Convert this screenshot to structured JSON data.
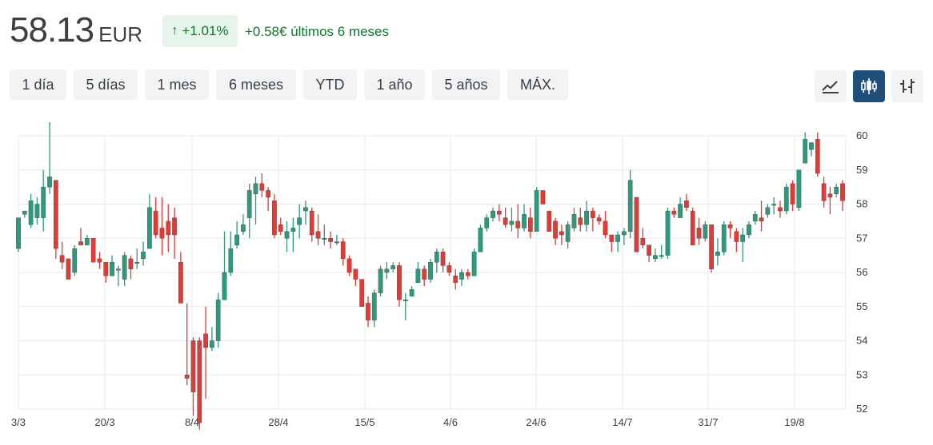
{
  "quote": {
    "price": "58.13",
    "currency": "EUR",
    "change_percent": "+1.01%",
    "change_text": "+0.58€ últimos 6 meses",
    "up_arrow_icon": "arrow-up-icon"
  },
  "ranges": [
    {
      "label": "1 día",
      "active": false
    },
    {
      "label": "5 días",
      "active": false
    },
    {
      "label": "1 mes",
      "active": false
    },
    {
      "label": "6 meses",
      "active": true
    },
    {
      "label": "YTD",
      "active": false
    },
    {
      "label": "1 año",
      "active": false
    },
    {
      "label": "5 años",
      "active": false
    },
    {
      "label": "MÁX.",
      "active": false
    }
  ],
  "chart_tools": [
    {
      "icon": "line-chart-icon",
      "active": false
    },
    {
      "icon": "candlestick-icon",
      "active": true
    },
    {
      "icon": "ohlc-bars-icon",
      "active": false
    }
  ],
  "colors": {
    "up": "#2e9a7d",
    "down": "#e53935",
    "active_tab": "#1f4e79",
    "positive_text": "#137333"
  },
  "chart_data": {
    "type": "candlestick",
    "ylim": [
      52,
      60
    ],
    "y_ticks": [
      "60",
      "59",
      "58",
      "57",
      "56",
      "55",
      "54",
      "53",
      "52"
    ],
    "x_tick_labels": [
      "3/3",
      "20/3",
      "8/4",
      "28/4",
      "15/5",
      "4/6",
      "24/6",
      "14/7",
      "31/7",
      "19/8"
    ],
    "grid": true,
    "candles": [
      [
        56.7,
        57.6,
        57.6,
        56.6
      ],
      [
        57.7,
        57.8,
        57.8,
        57.6
      ],
      [
        57.4,
        58.1,
        58.3,
        57.3
      ],
      [
        57.6,
        58.0,
        58.2,
        57.4
      ],
      [
        57.6,
        58.5,
        59.0,
        57.2
      ],
      [
        58.5,
        58.8,
        60.4,
        58.3
      ],
      [
        58.7,
        56.7,
        58.7,
        56.4
      ],
      [
        56.5,
        56.3,
        56.9,
        56.1
      ],
      [
        56.4,
        55.8,
        56.4,
        55.8
      ],
      [
        56.0,
        56.7,
        56.8,
        55.9
      ],
      [
        56.9,
        56.8,
        57.3,
        56.8
      ],
      [
        56.8,
        57.0,
        57.1,
        56.8
      ],
      [
        57.0,
        56.3,
        57.0,
        56.3
      ],
      [
        56.4,
        56.3,
        56.6,
        56.1
      ],
      [
        56.3,
        55.9,
        56.3,
        55.7
      ],
      [
        55.9,
        56.3,
        56.5,
        55.9
      ],
      [
        56.1,
        56.1,
        56.2,
        55.6
      ],
      [
        55.8,
        56.5,
        56.6,
        55.6
      ],
      [
        56.4,
        56.1,
        56.5,
        55.8
      ],
      [
        56.3,
        56.3,
        56.7,
        56.1
      ],
      [
        56.4,
        56.6,
        56.9,
        56.2
      ],
      [
        56.7,
        57.9,
        58.3,
        56.7
      ],
      [
        57.8,
        57.1,
        58.2,
        57.0
      ],
      [
        57.3,
        57.0,
        58.2,
        56.5
      ],
      [
        57.5,
        57.1,
        58.0,
        56.6
      ],
      [
        57.6,
        57.1,
        57.9,
        56.4
      ],
      [
        56.3,
        55.1,
        56.6,
        55.1
      ],
      [
        53.0,
        52.9,
        55.1,
        52.7
      ],
      [
        54.0,
        52.5,
        54.1,
        51.8
      ],
      [
        54.0,
        51.6,
        54.1,
        51.4
      ],
      [
        54.2,
        53.8,
        55.0,
        52.3
      ],
      [
        53.8,
        54.0,
        54.4,
        53.7
      ],
      [
        54.0,
        55.2,
        55.4,
        53.8
      ],
      [
        55.2,
        56.0,
        57.2,
        55.2
      ],
      [
        56.0,
        56.7,
        57.2,
        55.9
      ],
      [
        56.8,
        57.1,
        57.5,
        56.7
      ],
      [
        57.2,
        57.4,
        57.7,
        57.1
      ],
      [
        57.6,
        58.4,
        58.6,
        57.0
      ],
      [
        58.3,
        58.6,
        58.8,
        57.4
      ],
      [
        58.6,
        58.4,
        58.9,
        58.2
      ],
      [
        58.4,
        58.2,
        58.5,
        57.8
      ],
      [
        58.1,
        57.1,
        58.3,
        57.0
      ],
      [
        57.4,
        57.2,
        57.6,
        57.1
      ],
      [
        57.0,
        57.2,
        57.5,
        56.6
      ],
      [
        57.2,
        57.3,
        57.6,
        56.6
      ],
      [
        57.4,
        57.6,
        58.0,
        57.0
      ],
      [
        57.8,
        57.9,
        58.1,
        57.4
      ],
      [
        57.8,
        57.1,
        57.9,
        56.9
      ],
      [
        57.2,
        57.0,
        57.7,
        56.8
      ],
      [
        57.0,
        57.0,
        57.4,
        56.8
      ],
      [
        57.0,
        56.9,
        57.2,
        56.7
      ],
      [
        56.9,
        56.9,
        57.1,
        56.8
      ],
      [
        56.9,
        56.4,
        57.0,
        56.2
      ],
      [
        56.4,
        56.0,
        56.5,
        55.9
      ],
      [
        56.1,
        55.8,
        56.1,
        55.6
      ],
      [
        55.8,
        55.0,
        55.8,
        55.0
      ],
      [
        55.1,
        54.6,
        55.3,
        54.4
      ],
      [
        54.6,
        55.4,
        55.5,
        54.4
      ],
      [
        55.4,
        56.1,
        56.2,
        55.3
      ],
      [
        56.0,
        56.1,
        56.3,
        55.8
      ],
      [
        56.1,
        56.2,
        56.3,
        56.0
      ],
      [
        56.2,
        55.2,
        56.3,
        55.0
      ],
      [
        55.2,
        55.2,
        55.4,
        54.6
      ],
      [
        55.3,
        55.5,
        55.6,
        55.3
      ],
      [
        55.7,
        56.1,
        56.3,
        55.7
      ],
      [
        56.1,
        55.8,
        56.2,
        55.6
      ],
      [
        55.8,
        56.3,
        56.4,
        55.7
      ],
      [
        56.3,
        56.6,
        56.7,
        56.0
      ],
      [
        56.6,
        56.2,
        56.7,
        56.0
      ],
      [
        56.2,
        56.0,
        56.3,
        55.9
      ],
      [
        55.9,
        55.7,
        56.1,
        55.5
      ],
      [
        55.8,
        56.0,
        56.1,
        55.6
      ],
      [
        56.0,
        55.9,
        56.1,
        55.8
      ],
      [
        55.9,
        56.6,
        56.7,
        55.9
      ],
      [
        56.6,
        57.3,
        57.4,
        56.6
      ],
      [
        57.3,
        57.6,
        57.7,
        57.2
      ],
      [
        57.6,
        57.8,
        57.9,
        57.5
      ],
      [
        57.8,
        57.7,
        58.0,
        57.5
      ],
      [
        57.6,
        57.4,
        57.9,
        57.3
      ],
      [
        57.4,
        57.5,
        57.9,
        57.2
      ],
      [
        57.5,
        57.3,
        58.0,
        57.0
      ],
      [
        57.3,
        57.7,
        58.0,
        57.2
      ],
      [
        57.6,
        57.2,
        57.9,
        57.0
      ],
      [
        57.2,
        58.4,
        58.5,
        57.2
      ],
      [
        58.4,
        58.0,
        58.4,
        58.0
      ],
      [
        57.8,
        57.2,
        57.8,
        57.2
      ],
      [
        57.5,
        57.0,
        57.6,
        56.8
      ],
      [
        57.2,
        57.1,
        57.4,
        56.8
      ],
      [
        56.9,
        57.4,
        57.5,
        56.7
      ],
      [
        57.3,
        57.7,
        57.9,
        57.2
      ],
      [
        57.6,
        57.4,
        57.9,
        57.2
      ],
      [
        57.4,
        57.8,
        58.1,
        57.2
      ],
      [
        57.8,
        57.6,
        57.9,
        57.2
      ],
      [
        57.6,
        57.5,
        57.7,
        57.4
      ],
      [
        57.5,
        57.1,
        57.8,
        57.0
      ],
      [
        57.1,
        56.9,
        57.1,
        56.6
      ],
      [
        56.9,
        57.1,
        57.2,
        56.6
      ],
      [
        57.1,
        57.2,
        57.3,
        56.8
      ],
      [
        57.2,
        58.7,
        59.0,
        57.0
      ],
      [
        58.2,
        56.6,
        58.2,
        56.6
      ],
      [
        57.0,
        56.8,
        57.3,
        56.7
      ],
      [
        56.8,
        56.5,
        56.8,
        56.3
      ],
      [
        56.4,
        56.5,
        56.7,
        56.3
      ],
      [
        56.5,
        56.5,
        56.8,
        56.4
      ],
      [
        56.5,
        57.8,
        57.9,
        56.4
      ],
      [
        57.8,
        57.7,
        57.9,
        57.6
      ],
      [
        57.6,
        58.0,
        58.2,
        57.6
      ],
      [
        58.1,
        57.9,
        58.3,
        57.8
      ],
      [
        57.8,
        56.8,
        57.9,
        56.8
      ],
      [
        57.3,
        57.0,
        57.6,
        56.8
      ],
      [
        57.0,
        57.4,
        57.5,
        56.9
      ],
      [
        57.4,
        56.1,
        57.4,
        56.0
      ],
      [
        56.5,
        56.6,
        57.0,
        56.2
      ],
      [
        56.6,
        57.4,
        57.5,
        56.5
      ],
      [
        57.4,
        57.3,
        57.5,
        57.0
      ],
      [
        57.2,
        56.9,
        57.3,
        56.6
      ],
      [
        56.9,
        57.1,
        57.3,
        56.3
      ],
      [
        57.1,
        57.4,
        57.5,
        57.0
      ],
      [
        57.5,
        57.7,
        57.8,
        57.4
      ],
      [
        57.6,
        57.5,
        58.1,
        57.2
      ],
      [
        57.7,
        57.9,
        58.0,
        57.6
      ],
      [
        58.0,
        58.0,
        58.2,
        57.7
      ],
      [
        57.9,
        57.8,
        58.1,
        57.6
      ],
      [
        57.8,
        58.5,
        58.6,
        57.7
      ],
      [
        58.6,
        58.0,
        58.7,
        57.8
      ],
      [
        57.9,
        59.0,
        59.0,
        57.8
      ],
      [
        59.2,
        59.9,
        60.1,
        59.2
      ],
      [
        59.6,
        59.8,
        59.8,
        59.4
      ],
      [
        59.9,
        58.9,
        60.1,
        58.8
      ],
      [
        58.6,
        58.1,
        58.8,
        57.9
      ],
      [
        58.3,
        58.2,
        58.5,
        57.7
      ],
      [
        58.3,
        58.5,
        58.6,
        58.2
      ],
      [
        58.6,
        58.1,
        58.7,
        57.8
      ]
    ]
  }
}
